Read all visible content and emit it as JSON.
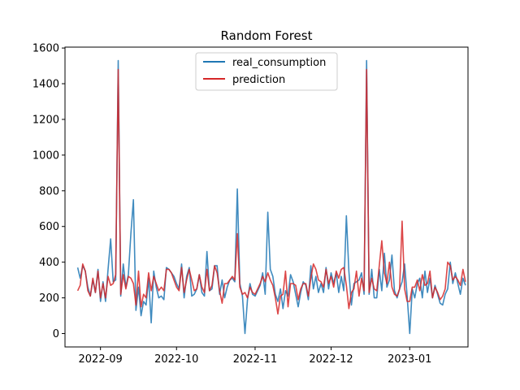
{
  "chart_data": {
    "type": "line",
    "title": "Random Forest",
    "xlabel": "",
    "ylabel": "",
    "x_start": "2022-08-23",
    "x_step_days": 1,
    "xlim": [
      "2022-08-18",
      "2023-01-24"
    ],
    "ylim": [
      -75,
      1605
    ],
    "yticks": [
      0,
      200,
      400,
      600,
      800,
      1000,
      1200,
      1400,
      1600
    ],
    "xticks": [
      {
        "date": "2022-09-01",
        "label": "2022-09"
      },
      {
        "date": "2022-10-01",
        "label": "2022-10"
      },
      {
        "date": "2022-11-01",
        "label": "2022-11"
      },
      {
        "date": "2022-12-01",
        "label": "2022-12"
      },
      {
        "date": "2023-01-01",
        "label": "2023-01"
      }
    ],
    "legend_position": "top-center",
    "grid": false,
    "series": [
      {
        "name": "real_consumption",
        "color": "#1f77b4",
        "values": [
          370,
          310,
          380,
          350,
          260,
          210,
          300,
          230,
          360,
          180,
          290,
          180,
          360,
          530,
          290,
          300,
          1530,
          210,
          390,
          260,
          330,
          560,
          750,
          130,
          260,
          100,
          180,
          160,
          310,
          60,
          350,
          260,
          200,
          210,
          190,
          370,
          360,
          340,
          320,
          280,
          250,
          390,
          200,
          320,
          370,
          210,
          220,
          250,
          330,
          230,
          210,
          460,
          240,
          250,
          380,
          380,
          220,
          300,
          200,
          260,
          300,
          310,
          290,
          810,
          280,
          210,
          0,
          190,
          280,
          220,
          210,
          240,
          270,
          340,
          220,
          680,
          360,
          320,
          220,
          180,
          250,
          140,
          240,
          210,
          330,
          290,
          220,
          150,
          230,
          290,
          270,
          190,
          380,
          250,
          320,
          230,
          280,
          230,
          370,
          250,
          340,
          280,
          340,
          230,
          320,
          240,
          660,
          350,
          160,
          280,
          290,
          300,
          340,
          220,
          1530,
          220,
          360,
          200,
          200,
          360,
          240,
          450,
          260,
          300,
          440,
          240,
          200,
          250,
          290,
          390,
          210,
          0,
          250,
          200,
          280,
          310,
          200,
          350,
          230,
          310,
          200,
          270,
          220,
          170,
          160,
          220,
          250,
          400,
          280,
          340,
          280,
          220,
          310,
          270
        ]
      },
      {
        "name": "prediction",
        "color": "#d62728",
        "values": [
          240,
          270,
          390,
          350,
          240,
          210,
          310,
          230,
          350,
          200,
          280,
          200,
          320,
          270,
          280,
          330,
          1480,
          220,
          330,
          250,
          320,
          310,
          280,
          160,
          350,
          150,
          220,
          200,
          340,
          240,
          320,
          280,
          240,
          260,
          240,
          360,
          360,
          340,
          300,
          260,
          240,
          370,
          230,
          300,
          360,
          300,
          240,
          250,
          330,
          260,
          230,
          360,
          240,
          270,
          380,
          340,
          240,
          170,
          280,
          280,
          300,
          320,
          300,
          560,
          260,
          220,
          230,
          200,
          260,
          230,
          220,
          250,
          280,
          320,
          290,
          340,
          300,
          270,
          200,
          110,
          210,
          220,
          350,
          150,
          280,
          280,
          270,
          190,
          250,
          280,
          280,
          210,
          310,
          390,
          360,
          300,
          290,
          260,
          360,
          280,
          320,
          260,
          350,
          310,
          360,
          370,
          270,
          140,
          230,
          250,
          350,
          210,
          310,
          240,
          1480,
          230,
          310,
          250,
          240,
          380,
          520,
          340,
          280,
          400,
          260,
          220,
          210,
          250,
          630,
          250,
          180,
          180,
          260,
          260,
          300,
          240,
          330,
          270,
          280,
          350,
          200,
          260,
          230,
          190,
          210,
          250,
          400,
          380,
          300,
          320,
          300,
          270,
          360,
          290
        ]
      }
    ]
  }
}
